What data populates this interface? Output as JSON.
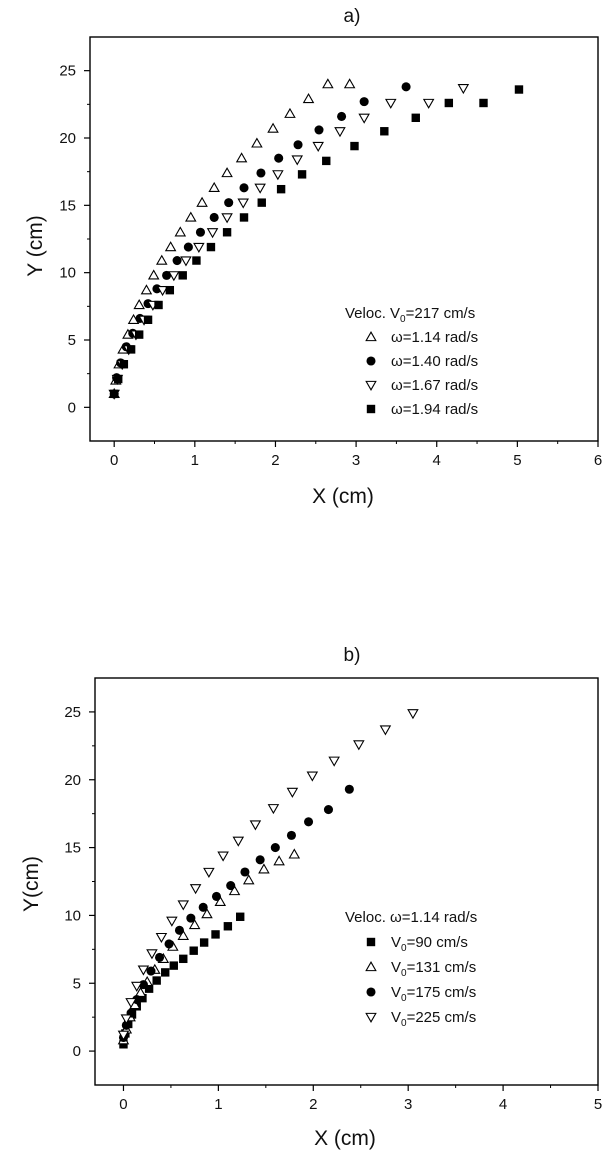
{
  "chart_data": [
    {
      "type": "scatter",
      "title": "a)",
      "xlabel": "X (cm)",
      "ylabel": "Y (cm)",
      "xlim": [
        -0.3,
        6
      ],
      "ylim": [
        -2.5,
        27.5
      ],
      "xticks": [
        0,
        1,
        2,
        3,
        4,
        5,
        6
      ],
      "yticks": [
        0,
        5,
        10,
        15,
        20,
        25
      ],
      "legend_title": {
        "prefix": "Veloc. V",
        "sub": "0",
        "suffix": "=217 cm/s"
      },
      "legend_position": "lower-right",
      "series": [
        {
          "name": "ω=1.14 rad/s",
          "marker": "triangle-up-open",
          "x": [
            0.0,
            0.02,
            0.06,
            0.11,
            0.17,
            0.24,
            0.31,
            0.4,
            0.49,
            0.59,
            0.7,
            0.82,
            0.95,
            1.09,
            1.24,
            1.4,
            1.58,
            1.77,
            1.97,
            2.18,
            2.41,
            2.65,
            2.92
          ],
          "y": [
            1.0,
            2.0,
            3.2,
            4.3,
            5.4,
            6.5,
            7.6,
            8.7,
            9.8,
            10.9,
            11.9,
            13.0,
            14.1,
            15.2,
            16.3,
            17.4,
            18.5,
            19.6,
            20.7,
            21.8,
            22.9,
            24.0,
            24.0
          ]
        },
        {
          "name": "ω=1.40 rad/s",
          "marker": "circle-filled",
          "x": [
            0.0,
            0.03,
            0.08,
            0.15,
            0.23,
            0.32,
            0.42,
            0.53,
            0.65,
            0.78,
            0.92,
            1.07,
            1.24,
            1.42,
            1.61,
            1.82,
            2.04,
            2.28,
            2.54,
            2.82,
            3.1,
            3.62
          ],
          "y": [
            1.0,
            2.2,
            3.3,
            4.5,
            5.5,
            6.6,
            7.7,
            8.8,
            9.8,
            10.9,
            11.9,
            13.0,
            14.1,
            15.2,
            16.3,
            17.4,
            18.5,
            19.5,
            20.6,
            21.6,
            22.7,
            23.8
          ]
        },
        {
          "name": "ω=1.67 rad/s",
          "marker": "triangle-down-open",
          "x": [
            0.0,
            0.04,
            0.1,
            0.18,
            0.27,
            0.37,
            0.48,
            0.6,
            0.74,
            0.89,
            1.05,
            1.22,
            1.4,
            1.6,
            1.81,
            2.03,
            2.27,
            2.53,
            2.8,
            3.1,
            3.43,
            3.9,
            4.33
          ],
          "y": [
            1.0,
            2.1,
            3.2,
            4.3,
            5.4,
            6.5,
            7.6,
            8.7,
            9.8,
            10.9,
            11.9,
            13.0,
            14.1,
            15.2,
            16.3,
            17.3,
            18.4,
            19.4,
            20.5,
            21.5,
            22.6,
            22.6,
            23.7
          ]
        },
        {
          "name": "ω=1.94 rad/s",
          "marker": "square-filled",
          "x": [
            0.0,
            0.05,
            0.12,
            0.21,
            0.31,
            0.42,
            0.55,
            0.69,
            0.85,
            1.02,
            1.2,
            1.4,
            1.61,
            1.83,
            2.07,
            2.33,
            2.63,
            2.98,
            3.35,
            3.74,
            4.15,
            4.58,
            5.02
          ],
          "y": [
            1.0,
            2.1,
            3.2,
            4.3,
            5.4,
            6.5,
            7.6,
            8.7,
            9.8,
            10.9,
            11.9,
            13.0,
            14.1,
            15.2,
            16.2,
            17.3,
            18.3,
            19.4,
            20.5,
            21.5,
            22.6,
            22.6,
            23.6
          ]
        }
      ]
    },
    {
      "type": "scatter",
      "title": "b)",
      "xlabel": "X (cm)",
      "ylabel": "Y(cm)",
      "xlim": [
        -0.3,
        5
      ],
      "ylim": [
        -2.5,
        27.5
      ],
      "xticks": [
        0,
        1,
        2,
        3,
        4,
        5
      ],
      "yticks": [
        0,
        5,
        10,
        15,
        20,
        25
      ],
      "legend_title": {
        "prefix": "Veloc. ω=1.14 rad/s",
        "sub": "",
        "suffix": ""
      },
      "legend_position": "lower-right",
      "series": [
        {
          "name": "V0=90 cm/s",
          "legend": {
            "prefix": "V",
            "sub": "0",
            "suffix": "=90 cm/s"
          },
          "marker": "square-filled",
          "x": [
            0.0,
            0.02,
            0.05,
            0.09,
            0.14,
            0.2,
            0.27,
            0.35,
            0.44,
            0.53,
            0.63,
            0.74,
            0.85,
            0.97,
            1.1,
            1.23
          ],
          "y": [
            0.5,
            1.3,
            2.0,
            2.7,
            3.3,
            3.9,
            4.6,
            5.2,
            5.8,
            6.3,
            6.8,
            7.4,
            8.0,
            8.6,
            9.2,
            9.9
          ]
        },
        {
          "name": "V0=131 cm/s",
          "legend": {
            "prefix": "V",
            "sub": "0",
            "suffix": "=131 cm/s"
          },
          "marker": "triangle-up-open",
          "x": [
            0.0,
            0.03,
            0.07,
            0.12,
            0.18,
            0.25,
            0.33,
            0.42,
            0.52,
            0.63,
            0.75,
            0.88,
            1.02,
            1.17,
            1.32,
            1.48,
            1.64,
            1.8
          ],
          "y": [
            0.8,
            1.6,
            2.5,
            3.4,
            4.3,
            5.1,
            6.0,
            6.8,
            7.7,
            8.5,
            9.3,
            10.1,
            11.0,
            11.8,
            12.6,
            13.4,
            14.0,
            14.5
          ]
        },
        {
          "name": "V0=175 cm/s",
          "legend": {
            "prefix": "V",
            "sub": "0",
            "suffix": "=175 cm/s"
          },
          "marker": "circle-filled",
          "x": [
            0.0,
            0.03,
            0.08,
            0.14,
            0.21,
            0.29,
            0.38,
            0.48,
            0.59,
            0.71,
            0.84,
            0.98,
            1.13,
            1.28,
            1.44,
            1.6,
            1.77,
            1.95,
            2.16,
            2.38
          ],
          "y": [
            1.0,
            1.9,
            2.8,
            3.8,
            4.9,
            5.9,
            6.9,
            7.9,
            8.9,
            9.8,
            10.6,
            11.4,
            12.2,
            13.2,
            14.1,
            15.0,
            15.9,
            16.9,
            17.8,
            19.3
          ]
        },
        {
          "name": "V0=225 cm/s",
          "legend": {
            "prefix": "V",
            "sub": "0",
            "suffix": "=225 cm/s"
          },
          "marker": "triangle-down-open",
          "x": [
            0.0,
            0.03,
            0.08,
            0.14,
            0.21,
            0.3,
            0.4,
            0.51,
            0.63,
            0.76,
            0.9,
            1.05,
            1.21,
            1.39,
            1.58,
            1.78,
            1.99,
            2.22,
            2.48,
            2.76,
            3.05
          ],
          "y": [
            1.2,
            2.4,
            3.6,
            4.8,
            6.0,
            7.2,
            8.4,
            9.6,
            10.8,
            12.0,
            13.2,
            14.4,
            15.5,
            16.7,
            17.9,
            19.1,
            20.3,
            21.4,
            22.6,
            23.7,
            24.9
          ]
        }
      ]
    }
  ]
}
